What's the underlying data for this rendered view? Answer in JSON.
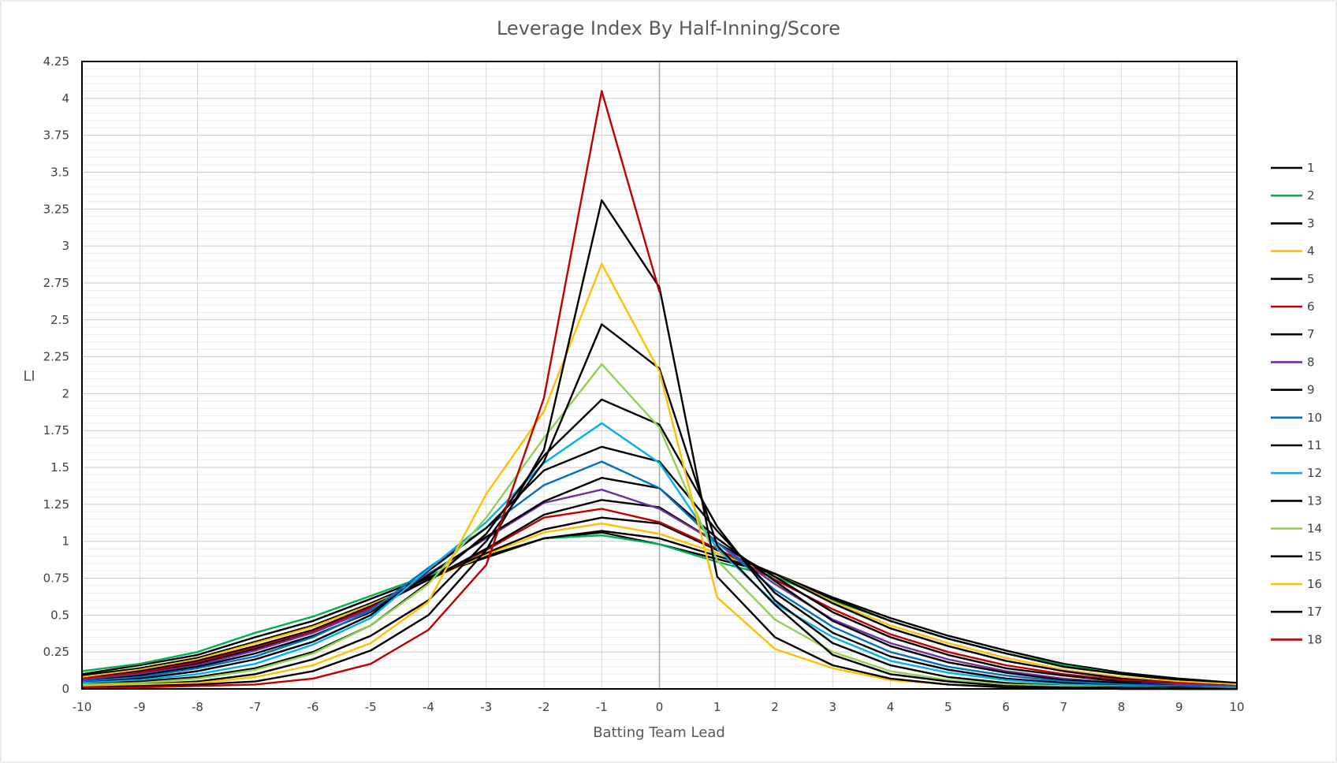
{
  "chart_data": {
    "type": "line",
    "title": "Leverage Index By Half-Inning/Score",
    "xlabel": "Batting Team Lead",
    "ylabel": "LI",
    "x": [
      -10,
      -9,
      -8,
      -7,
      -6,
      -5,
      -4,
      -3,
      -2,
      -1,
      0,
      1,
      2,
      3,
      4,
      5,
      6,
      7,
      8,
      9,
      10
    ],
    "x_ticks": [
      "-10",
      "-9",
      "-8",
      "-7",
      "-6",
      "-5",
      "-4",
      "-3",
      "-2",
      "-1",
      "0",
      "1",
      "2",
      "3",
      "4",
      "5",
      "6",
      "7",
      "8",
      "9",
      "10"
    ],
    "xlim": [
      -10,
      10
    ],
    "ylim": [
      0,
      4.25
    ],
    "y_ticks": [
      "0",
      "0.25",
      "0.5",
      "0.75",
      "1",
      "1.25",
      "1.5",
      "1.75",
      "2",
      "2.25",
      "2.5",
      "2.75",
      "3",
      "3.25",
      "3.5",
      "3.75",
      "4",
      "4.25"
    ],
    "y_minor_step": 0.05,
    "grid": true,
    "legend_position": "right",
    "series": [
      {
        "name": "1",
        "color": "#000000",
        "values": [
          0.1,
          0.16,
          0.23,
          0.35,
          0.46,
          0.61,
          0.76,
          0.89,
          1.02,
          1.06,
          0.98,
          0.88,
          0.78,
          0.62,
          0.48,
          0.36,
          0.26,
          0.17,
          0.11,
          0.07,
          0.04
        ]
      },
      {
        "name": "2",
        "color": "#00b050",
        "values": [
          0.12,
          0.17,
          0.25,
          0.38,
          0.49,
          0.63,
          0.77,
          0.9,
          1.02,
          1.04,
          0.98,
          0.86,
          0.76,
          0.6,
          0.46,
          0.34,
          0.24,
          0.16,
          0.1,
          0.06,
          0.03
        ]
      },
      {
        "name": "3",
        "color": "#000000",
        "values": [
          0.09,
          0.14,
          0.21,
          0.32,
          0.43,
          0.58,
          0.75,
          0.9,
          1.02,
          1.07,
          1.02,
          0.9,
          0.78,
          0.61,
          0.46,
          0.34,
          0.24,
          0.15,
          0.1,
          0.06,
          0.03
        ]
      },
      {
        "name": "4",
        "color": "#ffc000",
        "values": [
          0.08,
          0.13,
          0.2,
          0.31,
          0.42,
          0.57,
          0.74,
          0.91,
          1.06,
          1.12,
          1.05,
          0.92,
          0.78,
          0.59,
          0.43,
          0.31,
          0.21,
          0.13,
          0.08,
          0.05,
          0.03
        ]
      },
      {
        "name": "5",
        "color": "#000000",
        "values": [
          0.07,
          0.12,
          0.19,
          0.29,
          0.4,
          0.56,
          0.74,
          0.92,
          1.08,
          1.16,
          1.12,
          0.94,
          0.78,
          0.58,
          0.41,
          0.29,
          0.19,
          0.12,
          0.07,
          0.04,
          0.02
        ]
      },
      {
        "name": "6",
        "color": "#c00000",
        "values": [
          0.07,
          0.11,
          0.18,
          0.28,
          0.39,
          0.55,
          0.74,
          0.94,
          1.16,
          1.22,
          1.13,
          0.95,
          0.74,
          0.54,
          0.37,
          0.25,
          0.16,
          0.1,
          0.06,
          0.04,
          0.02
        ]
      },
      {
        "name": "7",
        "color": "#000000",
        "values": [
          0.06,
          0.1,
          0.17,
          0.27,
          0.38,
          0.54,
          0.74,
          0.95,
          1.18,
          1.28,
          1.23,
          0.99,
          0.76,
          0.52,
          0.35,
          0.23,
          0.14,
          0.09,
          0.05,
          0.03,
          0.02
        ]
      },
      {
        "name": "8",
        "color": "#7030a0",
        "values": [
          0.06,
          0.1,
          0.16,
          0.26,
          0.38,
          0.54,
          0.78,
          1.02,
          1.26,
          1.35,
          1.22,
          0.99,
          0.71,
          0.47,
          0.31,
          0.2,
          0.12,
          0.07,
          0.04,
          0.03,
          0.02
        ]
      },
      {
        "name": "9",
        "color": "#000000",
        "values": [
          0.05,
          0.09,
          0.15,
          0.24,
          0.36,
          0.52,
          0.77,
          1.03,
          1.27,
          1.43,
          1.36,
          1.02,
          0.73,
          0.46,
          0.29,
          0.18,
          0.11,
          0.06,
          0.04,
          0.02,
          0.01
        ]
      },
      {
        "name": "10",
        "color": "#0070c0",
        "values": [
          0.05,
          0.08,
          0.14,
          0.22,
          0.35,
          0.53,
          0.82,
          1.09,
          1.38,
          1.54,
          1.36,
          0.99,
          0.67,
          0.42,
          0.25,
          0.15,
          0.09,
          0.05,
          0.03,
          0.02,
          0.01
        ]
      },
      {
        "name": "11",
        "color": "#000000",
        "values": [
          0.04,
          0.07,
          0.12,
          0.2,
          0.32,
          0.5,
          0.8,
          1.09,
          1.48,
          1.64,
          1.54,
          1.07,
          0.65,
          0.38,
          0.22,
          0.13,
          0.07,
          0.04,
          0.02,
          0.01,
          0.01
        ]
      },
      {
        "name": "12",
        "color": "#00b0f0",
        "values": [
          0.04,
          0.06,
          0.1,
          0.17,
          0.3,
          0.48,
          0.81,
          1.13,
          1.53,
          1.8,
          1.53,
          0.95,
          0.58,
          0.35,
          0.19,
          0.11,
          0.06,
          0.03,
          0.02,
          0.01,
          0.01
        ]
      },
      {
        "name": "13",
        "color": "#000000",
        "values": [
          0.03,
          0.05,
          0.08,
          0.14,
          0.25,
          0.43,
          0.72,
          1.05,
          1.58,
          1.96,
          1.79,
          1.1,
          0.6,
          0.31,
          0.16,
          0.08,
          0.04,
          0.02,
          0.01,
          0.01,
          0.0
        ]
      },
      {
        "name": "14",
        "color": "#92d050",
        "values": [
          0.03,
          0.04,
          0.07,
          0.13,
          0.24,
          0.43,
          0.71,
          1.16,
          1.7,
          2.2,
          1.77,
          0.87,
          0.47,
          0.25,
          0.12,
          0.06,
          0.03,
          0.02,
          0.01,
          0.0,
          0.0
        ]
      },
      {
        "name": "15",
        "color": "#000000",
        "values": [
          0.02,
          0.03,
          0.05,
          0.1,
          0.2,
          0.36,
          0.6,
          1.0,
          1.54,
          2.47,
          2.17,
          0.97,
          0.57,
          0.23,
          0.1,
          0.05,
          0.02,
          0.01,
          0.01,
          0.0,
          0.0
        ]
      },
      {
        "name": "16",
        "color": "#ffc000",
        "values": [
          0.02,
          0.03,
          0.04,
          0.08,
          0.16,
          0.31,
          0.59,
          1.32,
          1.88,
          2.88,
          2.15,
          0.62,
          0.27,
          0.14,
          0.06,
          0.03,
          0.01,
          0.01,
          0.0,
          0.0,
          0.0
        ]
      },
      {
        "name": "17",
        "color": "#000000",
        "values": [
          0.01,
          0.02,
          0.03,
          0.05,
          0.12,
          0.26,
          0.5,
          0.94,
          1.62,
          3.31,
          2.72,
          0.76,
          0.35,
          0.16,
          0.07,
          0.03,
          0.01,
          0.01,
          0.0,
          0.0,
          0.0
        ]
      },
      {
        "name": "18",
        "color": "#c00000",
        "values": [
          0.01,
          0.01,
          0.02,
          0.03,
          0.07,
          0.17,
          0.4,
          0.84,
          1.97,
          4.05,
          2.69,
          null,
          null,
          null,
          null,
          null,
          null,
          null,
          null,
          null,
          null
        ]
      }
    ]
  }
}
